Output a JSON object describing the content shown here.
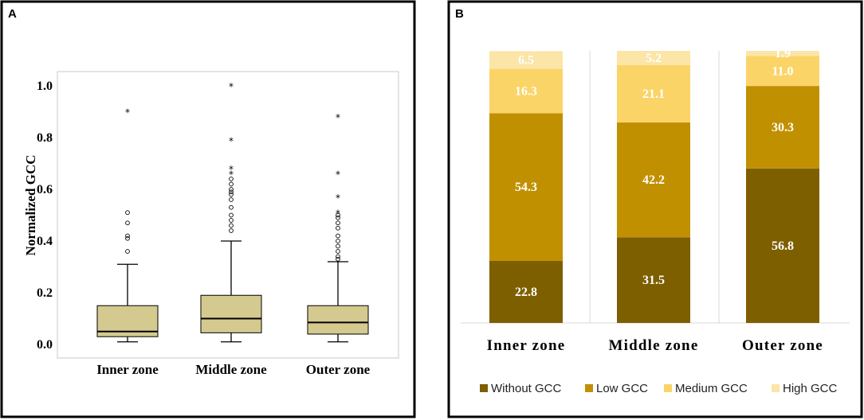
{
  "chart_data": [
    {
      "panel": "A",
      "type": "boxplot",
      "ylabel": "Normalized GCC",
      "xlabel": "",
      "ylim": [
        0,
        1.0
      ],
      "yticks": [
        "0.0",
        "0.2",
        "0.4",
        "0.6",
        "0.8",
        "1.0"
      ],
      "categories": [
        "Inner zone",
        "Middle zone",
        "Outer zone"
      ],
      "colors": {
        "box": "#d4ca8f",
        "border": "#000000"
      },
      "boxes": [
        {
          "name": "Inner zone",
          "min": 0.01,
          "q1": 0.03,
          "median": 0.05,
          "q3": 0.15,
          "max": 0.31,
          "outliers": [
            0.36,
            0.41,
            0.42,
            0.47,
            0.51
          ],
          "extremes": [
            0.9
          ]
        },
        {
          "name": "Middle zone",
          "min": 0.01,
          "q1": 0.045,
          "median": 0.1,
          "q3": 0.19,
          "max": 0.4,
          "outliers": [
            0.44,
            0.46,
            0.48,
            0.5,
            0.53,
            0.56,
            0.58,
            0.59,
            0.6,
            0.62,
            0.64
          ],
          "extremes": [
            0.66,
            0.68,
            0.79,
            1.0
          ]
        },
        {
          "name": "Outer zone",
          "min": 0.01,
          "q1": 0.04,
          "median": 0.085,
          "q3": 0.15,
          "max": 0.32,
          "outliers": [
            0.33,
            0.34,
            0.36,
            0.38,
            0.4,
            0.42,
            0.45,
            0.47,
            0.49,
            0.5
          ],
          "extremes": [
            0.51,
            0.57,
            0.66,
            0.88
          ]
        }
      ]
    },
    {
      "panel": "B",
      "type": "stacked-bar-100",
      "categories": [
        "Inner zone",
        "Middle zone",
        "Outer zone"
      ],
      "series": [
        {
          "name": "Without GCC",
          "color": "#7d5f00",
          "values": [
            22.8,
            31.5,
            56.8
          ]
        },
        {
          "name": "Low GCC",
          "color": "#c09000",
          "values": [
            54.3,
            42.2,
            30.3
          ]
        },
        {
          "name": "Medium GCC",
          "color": "#fbd468",
          "values": [
            16.3,
            21.1,
            11.0
          ]
        },
        {
          "name": "High GCC",
          "color": "#fbe5a7",
          "values": [
            6.5,
            5.2,
            1.9
          ]
        }
      ],
      "value_labels": [
        [
          "22.8",
          "31.5",
          "56.8"
        ],
        [
          "54.3",
          "42.2",
          "30.3"
        ],
        [
          "16.3",
          "21.1",
          "11.0"
        ],
        [
          "6.5",
          "5.2",
          "1.9"
        ]
      ],
      "ylim": [
        0,
        100
      ],
      "legend_position": "bottom"
    }
  ]
}
